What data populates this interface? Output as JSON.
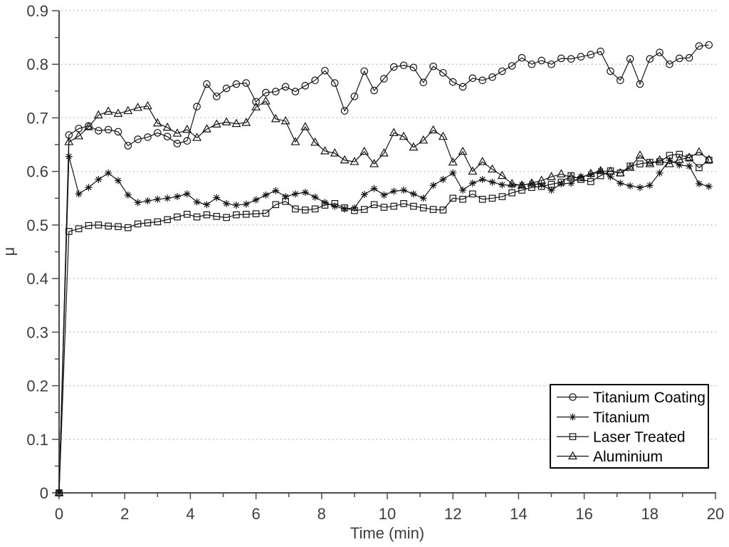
{
  "chart_data": {
    "type": "line",
    "title": "",
    "xlabel": "Time (min)",
    "ylabel": "μ",
    "xlim": [
      0,
      20
    ],
    "ylim": [
      0,
      0.9
    ],
    "grid": "horizontal-dotted",
    "legend_position": "lower-right",
    "colors": {
      "series": "#141414",
      "axis": "#4d4d4d",
      "grid": "#b0b0b0",
      "tick_label": "#3d3d3d",
      "legend_border": "#000000",
      "background": "#ffffff"
    },
    "x_major_ticks": [
      0,
      2,
      4,
      6,
      8,
      10,
      12,
      14,
      16,
      18,
      20
    ],
    "x_tick_labels": [
      "0",
      "2",
      "4",
      "6",
      "8",
      "10",
      "12",
      "14",
      "16",
      "18",
      "20"
    ],
    "x_minor_ticks": [
      1,
      3,
      5,
      7,
      9,
      11,
      13,
      15,
      17,
      19
    ],
    "y_major_ticks": [
      0,
      0.1,
      0.2,
      0.3,
      0.4,
      0.5,
      0.6,
      0.7,
      0.8,
      0.9
    ],
    "y_tick_labels": [
      "0",
      "0.1",
      "0.2",
      "0.3",
      "0.4",
      "0.5",
      "0.6",
      "0.7",
      "0.8",
      "0.9"
    ],
    "y_minor_ticks": [
      0.05,
      0.15,
      0.25,
      0.35,
      0.45,
      0.55,
      0.65,
      0.75,
      0.85
    ],
    "gridline_values": [
      0.1,
      0.2,
      0.3,
      0.4,
      0.5,
      0.6,
      0.7,
      0.8,
      0.9
    ],
    "x": [
      0,
      0.3,
      0.6,
      0.9,
      1.2,
      1.5,
      1.8,
      2.1,
      2.4,
      2.7,
      3.0,
      3.3,
      3.6,
      3.9,
      4.2,
      4.5,
      4.8,
      5.1,
      5.4,
      5.7,
      6.0,
      6.3,
      6.6,
      6.9,
      7.2,
      7.5,
      7.8,
      8.1,
      8.4,
      8.7,
      9.0,
      9.3,
      9.6,
      9.9,
      10.2,
      10.5,
      10.8,
      11.1,
      11.4,
      11.7,
      12.0,
      12.3,
      12.6,
      12.9,
      13.2,
      13.5,
      13.8,
      14.1,
      14.4,
      14.7,
      15.0,
      15.3,
      15.6,
      15.9,
      16.2,
      16.5,
      16.8,
      17.1,
      17.4,
      17.7,
      18.0,
      18.3,
      18.6,
      18.9,
      19.2,
      19.5,
      19.8
    ],
    "series": [
      {
        "name": "Titanium Coating",
        "marker": "circle",
        "values": [
          0,
          0.668,
          0.68,
          0.685,
          0.676,
          0.678,
          0.674,
          0.648,
          0.66,
          0.664,
          0.672,
          0.665,
          0.652,
          0.657,
          0.721,
          0.763,
          0.74,
          0.755,
          0.763,
          0.765,
          0.73,
          0.747,
          0.749,
          0.758,
          0.749,
          0.76,
          0.77,
          0.788,
          0.765,
          0.713,
          0.74,
          0.787,
          0.751,
          0.773,
          0.795,
          0.798,
          0.794,
          0.766,
          0.796,
          0.784,
          0.767,
          0.758,
          0.774,
          0.77,
          0.776,
          0.787,
          0.797,
          0.812,
          0.8,
          0.807,
          0.8,
          0.811,
          0.81,
          0.814,
          0.818,
          0.824,
          0.787,
          0.77,
          0.81,
          0.763,
          0.81,
          0.822,
          0.8,
          0.811,
          0.812,
          0.834,
          0.836
        ]
      },
      {
        "name": "Titanium",
        "marker": "asterisk",
        "values": [
          0,
          0.628,
          0.558,
          0.57,
          0.585,
          0.597,
          0.583,
          0.556,
          0.542,
          0.545,
          0.548,
          0.55,
          0.553,
          0.558,
          0.543,
          0.538,
          0.551,
          0.54,
          0.537,
          0.539,
          0.547,
          0.556,
          0.564,
          0.553,
          0.558,
          0.561,
          0.552,
          0.542,
          0.535,
          0.53,
          0.532,
          0.557,
          0.568,
          0.556,
          0.563,
          0.565,
          0.558,
          0.55,
          0.574,
          0.585,
          0.597,
          0.565,
          0.578,
          0.585,
          0.58,
          0.575,
          0.574,
          0.575,
          0.577,
          0.575,
          0.565,
          0.577,
          0.578,
          0.59,
          0.594,
          0.601,
          0.59,
          0.578,
          0.573,
          0.57,
          0.574,
          0.597,
          0.621,
          0.612,
          0.61,
          0.577,
          0.572
        ]
      },
      {
        "name": "Laser Treated",
        "marker": "square",
        "values": [
          0,
          0.488,
          0.493,
          0.499,
          0.5,
          0.498,
          0.497,
          0.495,
          0.502,
          0.504,
          0.506,
          0.51,
          0.515,
          0.52,
          0.515,
          0.519,
          0.516,
          0.514,
          0.519,
          0.52,
          0.521,
          0.522,
          0.538,
          0.544,
          0.53,
          0.528,
          0.53,
          0.537,
          0.54,
          0.532,
          0.527,
          0.529,
          0.538,
          0.533,
          0.535,
          0.54,
          0.535,
          0.532,
          0.529,
          0.528,
          0.55,
          0.548,
          0.558,
          0.548,
          0.55,
          0.553,
          0.56,
          0.565,
          0.57,
          0.572,
          0.576,
          0.58,
          0.592,
          0.585,
          0.581,
          0.592,
          0.601,
          0.597,
          0.61,
          0.614,
          0.617,
          0.618,
          0.63,
          0.632,
          0.625,
          0.607,
          0.621
        ]
      },
      {
        "name": "Aluminium",
        "marker": "triangle",
        "values": [
          0,
          0.655,
          0.666,
          0.683,
          0.705,
          0.712,
          0.708,
          0.713,
          0.719,
          0.722,
          0.69,
          0.682,
          0.671,
          0.678,
          0.663,
          0.679,
          0.688,
          0.692,
          0.689,
          0.691,
          0.72,
          0.731,
          0.698,
          0.694,
          0.655,
          0.683,
          0.654,
          0.638,
          0.634,
          0.621,
          0.618,
          0.637,
          0.614,
          0.634,
          0.672,
          0.665,
          0.645,
          0.658,
          0.677,
          0.665,
          0.617,
          0.637,
          0.6,
          0.618,
          0.604,
          0.592,
          0.577,
          0.574,
          0.578,
          0.583,
          0.59,
          0.595,
          0.589,
          0.588,
          0.596,
          0.601,
          0.6,
          0.597,
          0.607,
          0.63,
          0.614,
          0.621,
          0.614,
          0.622,
          0.626,
          0.636,
          0.622
        ]
      }
    ],
    "legend": {
      "entries": [
        "Titanium Coating",
        "Titanium",
        "Laser Treated",
        "Aluminium"
      ]
    }
  }
}
